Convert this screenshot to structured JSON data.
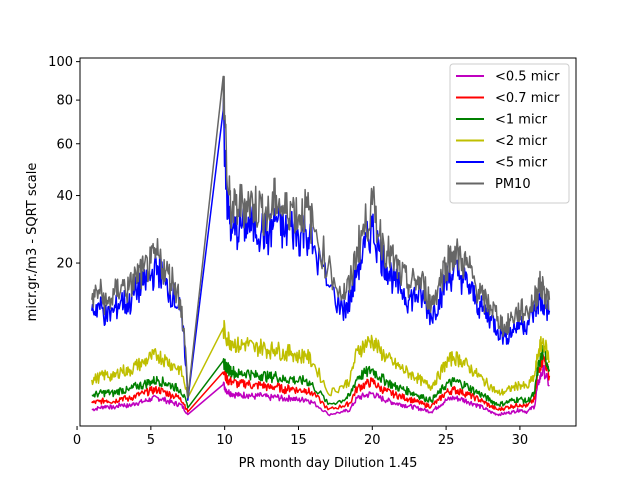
{
  "chart_data": {
    "type": "line",
    "title": "",
    "xlabel": "PR month day  Dilution 1.45",
    "ylabel": "micr.gr./m3 - SQRT scale",
    "y_scale": "sqrt",
    "xlim": [
      0.2,
      33.8
    ],
    "ylim": [
      0,
      102
    ],
    "x_ticks": [
      0,
      5,
      10,
      15,
      20,
      25,
      30
    ],
    "y_ticks": [
      20,
      40,
      60,
      80,
      100
    ],
    "grid": false,
    "legend_position": "top-right",
    "series": [
      {
        "name": "<0.5 micr",
        "color": "#bf00bf",
        "x": [
          1,
          1.5,
          2,
          2.5,
          3,
          3.5,
          4,
          4.5,
          5,
          5.5,
          6,
          6.5,
          7,
          7.5,
          9.9,
          10.2,
          10.5,
          11,
          11.5,
          12,
          12.5,
          13,
          13.5,
          14,
          14.5,
          15,
          15.5,
          16,
          17,
          18,
          18.5,
          19,
          19.5,
          20,
          20.5,
          21,
          21.5,
          22,
          22.5,
          23,
          23.5,
          24,
          24.5,
          25,
          25.5,
          26,
          26.5,
          27,
          27.5,
          28,
          28.5,
          29,
          29.5,
          30,
          30.5,
          31,
          31.3,
          31.6,
          32
        ],
        "y": [
          0.2,
          0.25,
          0.3,
          0.25,
          0.35,
          0.3,
          0.4,
          0.45,
          0.55,
          0.6,
          0.5,
          0.4,
          0.35,
          0.1,
          1.3,
          0.9,
          0.8,
          0.7,
          0.75,
          0.65,
          0.7,
          0.6,
          0.65,
          0.55,
          0.6,
          0.5,
          0.55,
          0.4,
          0.1,
          0.15,
          0.2,
          0.6,
          0.7,
          0.8,
          0.6,
          0.5,
          0.4,
          0.35,
          0.3,
          0.25,
          0.2,
          0.15,
          0.3,
          0.5,
          0.6,
          0.55,
          0.45,
          0.35,
          0.25,
          0.15,
          0.1,
          0.12,
          0.15,
          0.2,
          0.15,
          0.3,
          1.6,
          2.4,
          1.2
        ]
      },
      {
        "name": "<0.7 micr",
        "color": "#ff0000",
        "x": [
          1,
          1.5,
          2,
          2.5,
          3,
          3.5,
          4,
          4.5,
          5,
          5.5,
          6,
          6.5,
          7,
          7.5,
          9.9,
          10.2,
          10.5,
          11,
          11.5,
          12,
          12.5,
          13,
          13.5,
          14,
          14.5,
          15,
          15.5,
          16,
          17,
          18,
          18.5,
          19,
          19.5,
          20,
          20.5,
          21,
          21.5,
          22,
          22.5,
          23,
          23.5,
          24,
          24.5,
          25,
          25.5,
          26,
          26.5,
          27,
          27.5,
          28,
          28.5,
          29,
          29.5,
          30,
          30.5,
          31,
          31.3,
          31.6,
          32
        ],
        "y": [
          0.4,
          0.45,
          0.5,
          0.45,
          0.6,
          0.55,
          0.7,
          0.8,
          0.95,
          1.0,
          0.85,
          0.7,
          0.6,
          0.15,
          2.2,
          1.6,
          1.5,
          1.3,
          1.4,
          1.2,
          1.3,
          1.1,
          1.2,
          1.0,
          1.1,
          0.95,
          1.0,
          0.75,
          0.2,
          0.3,
          0.4,
          1.1,
          1.3,
          1.5,
          1.1,
          0.9,
          0.75,
          0.65,
          0.55,
          0.45,
          0.35,
          0.3,
          0.5,
          0.85,
          1.0,
          0.9,
          0.75,
          0.6,
          0.45,
          0.3,
          0.2,
          0.25,
          0.3,
          0.35,
          0.3,
          0.55,
          2.6,
          3.5,
          1.9
        ]
      },
      {
        "name": "<1 micr",
        "color": "#008000",
        "x": [
          1,
          1.5,
          2,
          2.5,
          3,
          3.5,
          4,
          4.5,
          5,
          5.5,
          6,
          6.5,
          7,
          7.5,
          9.9,
          10.2,
          10.5,
          11,
          11.5,
          12,
          12.5,
          13,
          13.5,
          14,
          14.5,
          15,
          15.5,
          16,
          17,
          18,
          18.5,
          19,
          19.5,
          20,
          20.5,
          21,
          21.5,
          22,
          22.5,
          23,
          23.5,
          24,
          24.5,
          25,
          25.5,
          26,
          26.5,
          27,
          27.5,
          28,
          28.5,
          29,
          29.5,
          30,
          30.5,
          31,
          31.3,
          31.6,
          32
        ],
        "y": [
          0.7,
          0.8,
          0.85,
          0.8,
          1.0,
          0.95,
          1.2,
          1.3,
          1.5,
          1.6,
          1.4,
          1.2,
          1.0,
          0.25,
          3.2,
          2.5,
          2.3,
          2.0,
          2.2,
          1.9,
          2.0,
          1.8,
          1.9,
          1.6,
          1.7,
          1.5,
          1.6,
          1.2,
          0.35,
          0.5,
          0.7,
          1.8,
          2.1,
          2.4,
          1.8,
          1.5,
          1.2,
          1.05,
          0.9,
          0.75,
          0.6,
          0.5,
          0.8,
          1.3,
          1.5,
          1.4,
          1.15,
          0.9,
          0.7,
          0.5,
          0.35,
          0.4,
          0.5,
          0.55,
          0.45,
          0.8,
          3.0,
          4.2,
          2.4
        ]
      },
      {
        "name": "<2 micr",
        "color": "#bfbf00",
        "x": [
          1,
          1.5,
          2,
          2.5,
          3,
          3.5,
          4,
          4.5,
          5,
          5.5,
          6,
          6.5,
          7,
          7.5,
          9.9,
          10.2,
          10.5,
          11,
          11.5,
          12,
          12.5,
          13,
          13.5,
          14,
          14.5,
          15,
          15.5,
          16,
          17,
          18,
          18.5,
          19,
          19.5,
          20,
          20.5,
          21,
          21.5,
          22,
          22.5,
          23,
          23.5,
          24,
          24.5,
          25,
          25.5,
          26,
          26.5,
          27,
          27.5,
          28,
          28.5,
          29,
          29.5,
          30,
          30.5,
          31,
          31.3,
          31.6,
          32
        ],
        "y": [
          1.6,
          1.8,
          2.0,
          1.8,
          2.4,
          2.2,
          2.8,
          3.0,
          3.6,
          3.8,
          3.3,
          2.8,
          2.4,
          0.6,
          7.2,
          5.8,
          5.4,
          4.8,
          5.2,
          4.5,
          4.8,
          4.3,
          4.6,
          3.9,
          4.2,
          3.6,
          3.9,
          2.9,
          0.8,
          1.2,
          1.6,
          4.3,
          5.0,
          5.6,
          4.3,
          3.5,
          2.9,
          2.5,
          2.1,
          1.8,
          1.4,
          1.2,
          1.9,
          3.0,
          3.6,
          3.3,
          2.7,
          2.1,
          1.6,
          1.2,
          0.8,
          0.9,
          1.1,
          1.3,
          1.1,
          1.9,
          4.5,
          5.5,
          3.2
        ]
      },
      {
        "name": "<5 micr",
        "color": "#0000ff",
        "x": [
          1,
          1.5,
          2,
          2.5,
          3,
          3.5,
          4,
          4.5,
          5,
          5.5,
          6,
          6.5,
          7,
          7.5,
          9.9,
          10.2,
          10.5,
          11,
          11.5,
          12,
          12.5,
          13,
          13.5,
          14,
          14.5,
          15,
          15.5,
          16,
          17,
          18,
          18.5,
          19,
          19.5,
          20,
          20.5,
          21,
          21.5,
          22,
          22.5,
          23,
          23.5,
          24,
          24.5,
          25,
          25.5,
          26,
          26.5,
          27,
          27.5,
          28,
          28.5,
          29,
          29.5,
          30,
          30.5,
          31,
          31.3,
          31.6,
          32
        ],
        "y": [
          10,
          11,
          9,
          10,
          12,
          11,
          14,
          15,
          17,
          19,
          15,
          13,
          10,
          0.5,
          75,
          35,
          28,
          30,
          31,
          30,
          29,
          27,
          33,
          28,
          30,
          27,
          29,
          24,
          15,
          10,
          12,
          19,
          24,
          30,
          23,
          19,
          16,
          14,
          12,
          13,
          12,
          9,
          12,
          16,
          18,
          17,
          15,
          12,
          10,
          9,
          7,
          6,
          7,
          8,
          8,
          10,
          12,
          11,
          10
        ]
      },
      {
        "name": "PM10",
        "color": "#666666",
        "x": [
          1,
          1.5,
          2,
          2.5,
          3,
          3.5,
          4,
          4.5,
          5,
          5.5,
          6,
          6.5,
          7,
          7.5,
          9.9,
          10.2,
          10.5,
          11,
          11.5,
          12,
          12.5,
          13,
          13.5,
          14,
          14.5,
          15,
          15.5,
          16,
          17,
          18,
          18.5,
          19,
          19.5,
          20,
          20.5,
          21,
          21.5,
          22,
          22.5,
          23,
          23.5,
          24,
          24.5,
          25,
          25.5,
          26,
          26.5,
          27,
          27.5,
          28,
          28.5,
          29,
          29.5,
          30,
          30.5,
          31,
          31.3,
          31.6,
          32
        ],
        "y": [
          12,
          14,
          11,
          13,
          15,
          14,
          17,
          18,
          20,
          22,
          18,
          16,
          12,
          0.6,
          92,
          42,
          34,
          37,
          38,
          37,
          36,
          33,
          40,
          34,
          37,
          33,
          36,
          30,
          19,
          13,
          15,
          24,
          30,
          37,
          28,
          23,
          20,
          17,
          15,
          16,
          15,
          11,
          15,
          20,
          23,
          21,
          19,
          15,
          12,
          11,
          9,
          7,
          9,
          10,
          10,
          12,
          15,
          14,
          12
        ]
      }
    ]
  }
}
